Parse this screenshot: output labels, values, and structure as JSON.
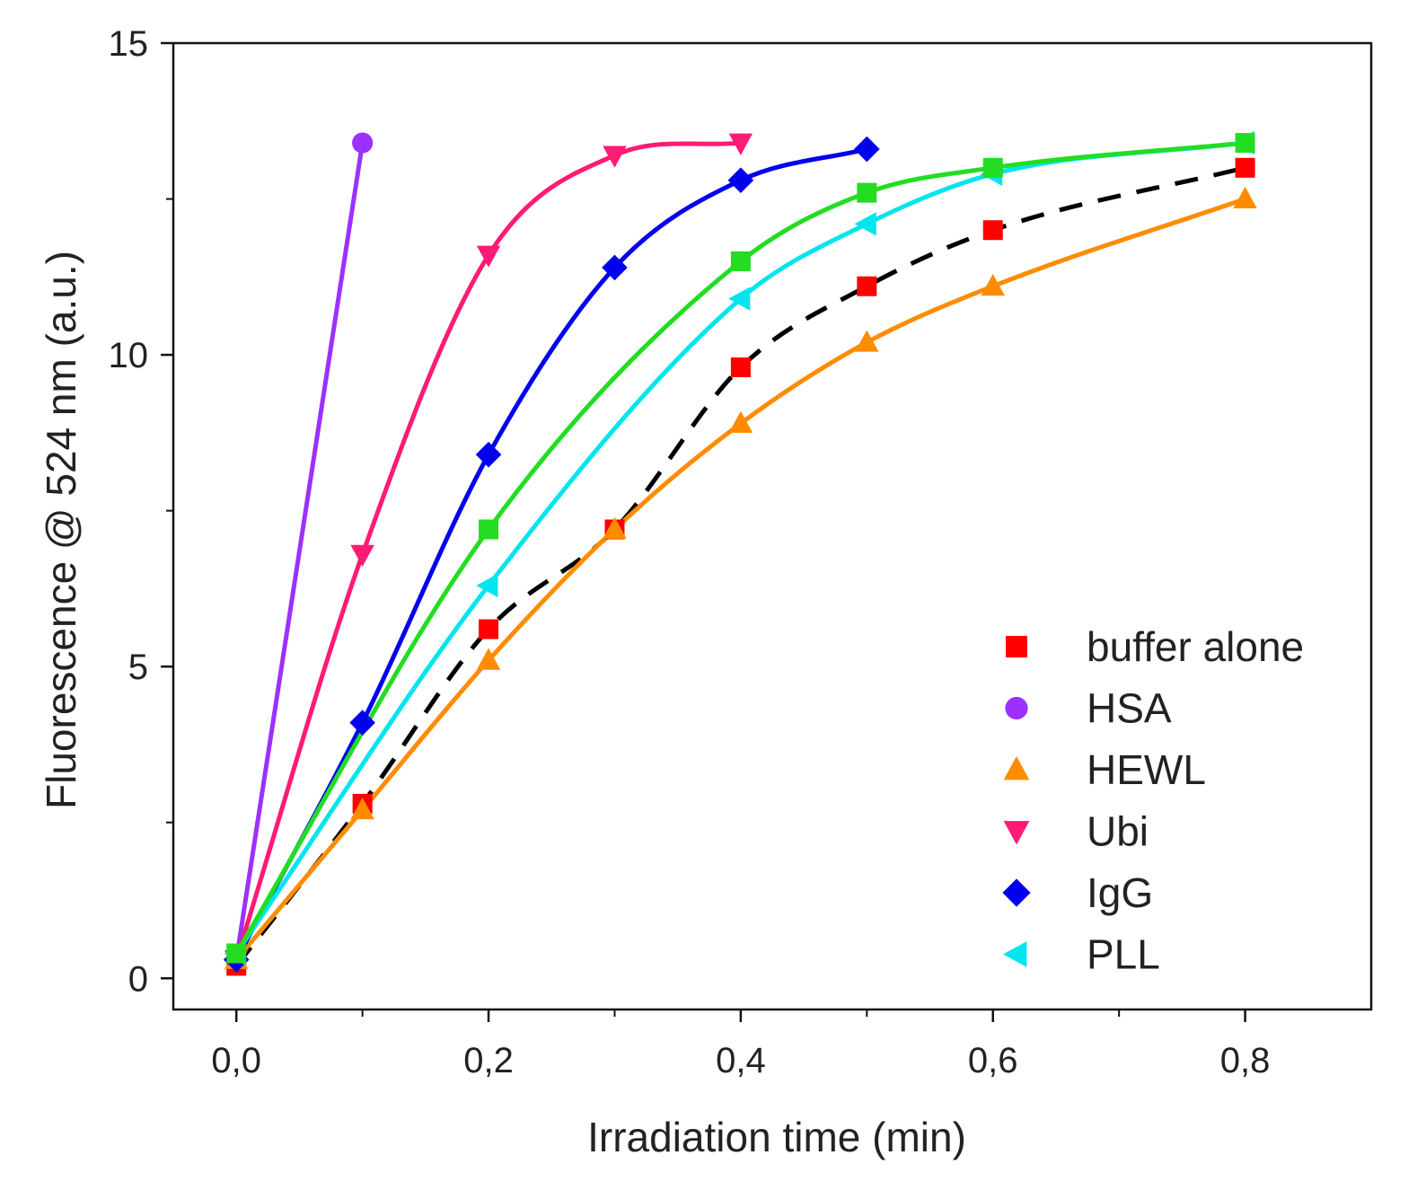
{
  "chart_data": {
    "type": "scatter",
    "xlabel": "Irradiation time (min)",
    "ylabel": "Fluorescence @ 524 nm (a.u.)",
    "xlim": [
      -0.05,
      0.9
    ],
    "ylim": [
      -0.5,
      15
    ],
    "xticks": [
      0.0,
      0.2,
      0.4,
      0.6,
      0.8
    ],
    "xtick_labels": [
      "0,0",
      "0,2",
      "0,4",
      "0,6",
      "0,8"
    ],
    "yticks": [
      0,
      5,
      10,
      15
    ],
    "ytick_labels": [
      "0",
      "5",
      "10",
      "15"
    ],
    "legend_position": "bottom-right",
    "series": [
      {
        "name": "buffer alone",
        "marker": "square",
        "color": "#ff0000",
        "line_color": "#000000",
        "line_style": "dashed",
        "x": [
          0.0,
          0.1,
          0.2,
          0.3,
          0.4,
          0.5,
          0.6,
          0.8
        ],
        "y": [
          0.2,
          2.8,
          5.6,
          7.2,
          9.8,
          11.1,
          12.0,
          13.0
        ]
      },
      {
        "name": "HSA",
        "marker": "circle",
        "color": "#9b30ff",
        "line_color": "#9b30ff",
        "line_style": "solid",
        "x": [
          0.0,
          0.1
        ],
        "y": [
          0.3,
          13.4
        ]
      },
      {
        "name": "HEWL",
        "marker": "triangle-up",
        "color": "#ff8c00",
        "line_color": "#ff8c00",
        "line_style": "solid",
        "x": [
          0.0,
          0.1,
          0.2,
          0.3,
          0.4,
          0.5,
          0.6,
          0.8
        ],
        "y": [
          0.3,
          2.7,
          5.1,
          7.2,
          8.9,
          10.2,
          11.1,
          12.5
        ]
      },
      {
        "name": "Ubi",
        "marker": "triangle-down",
        "color": "#ff1a75",
        "line_color": "#ff1a75",
        "line_style": "solid",
        "x": [
          0.0,
          0.1,
          0.2,
          0.3,
          0.4
        ],
        "y": [
          0.3,
          6.8,
          11.6,
          13.2,
          13.4
        ]
      },
      {
        "name": "IgG",
        "marker": "diamond",
        "color": "#0000ee",
        "line_color": "#0000ee",
        "line_style": "solid",
        "x": [
          0.0,
          0.1,
          0.2,
          0.3,
          0.4,
          0.5
        ],
        "y": [
          0.3,
          4.1,
          8.4,
          11.4,
          12.8,
          13.3
        ]
      },
      {
        "name": "PLL",
        "marker": "triangle-left",
        "color": "#00e5ee",
        "line_color": "#00e5ee",
        "line_style": "solid",
        "x": [
          0.0,
          0.2,
          0.4,
          0.5,
          0.6,
          0.8
        ],
        "y": [
          0.4,
          6.3,
          10.9,
          12.1,
          12.9,
          13.4
        ]
      },
      {
        "name": "",
        "marker": "square",
        "color": "#22dd22",
        "line_color": "#22dd22",
        "line_style": "solid",
        "x": [
          0.0,
          0.2,
          0.4,
          0.5,
          0.6,
          0.8
        ],
        "y": [
          0.4,
          7.2,
          11.5,
          12.6,
          13.0,
          13.4
        ]
      }
    ]
  }
}
